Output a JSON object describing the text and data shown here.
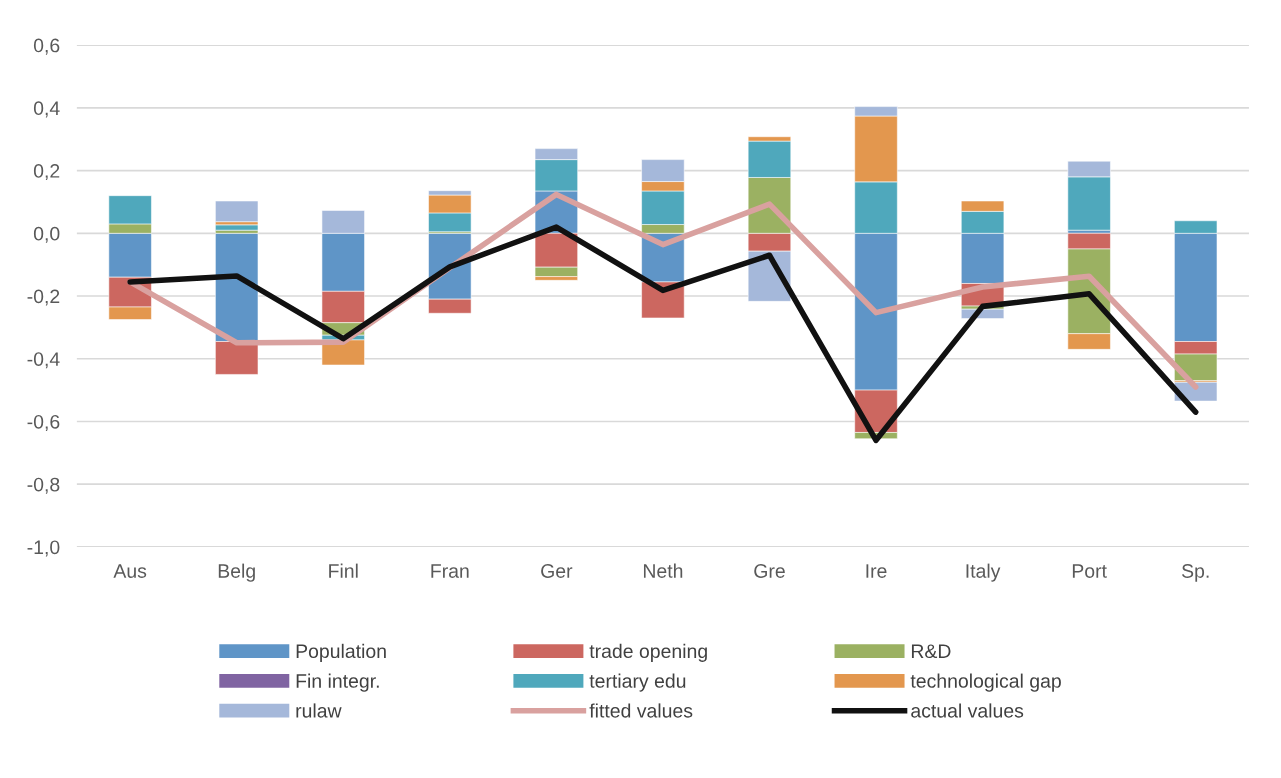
{
  "chart_data": {
    "type": "bar",
    "stacked": true,
    "categories": [
      "Aus",
      "Belg",
      "Finl",
      "Fran",
      "Ger",
      "Neth",
      "Gre",
      "Ire",
      "Italy",
      "Port",
      "Sp."
    ],
    "series": [
      {
        "name": "Population",
        "color": "#5f95c7",
        "values": [
          -0.14,
          -0.345,
          -0.185,
          -0.21,
          0.135,
          -0.155,
          null,
          -0.5,
          -0.16,
          0.01,
          -0.345
        ]
      },
      {
        "name": "trade opening",
        "color": "#cc6760",
        "values": [
          -0.095,
          -0.105,
          -0.1,
          -0.045,
          -0.108,
          -0.115,
          -0.057,
          -0.135,
          -0.072,
          -0.05,
          -0.04
        ]
      },
      {
        "name": "R&D",
        "color": "#9bb162",
        "values": [
          0.03,
          0.01,
          -0.04,
          0.005,
          -0.03,
          0.028,
          0.178,
          -0.02,
          -0.01,
          -0.27,
          -0.085
        ]
      },
      {
        "name": "Fin integr.",
        "color": "#8064a2",
        "values": [
          null,
          null,
          null,
          null,
          null,
          null,
          null,
          null,
          null,
          null,
          null
        ]
      },
      {
        "name": "tertiary edu",
        "color": "#4fa8bc",
        "values": [
          0.09,
          0.017,
          -0.015,
          0.06,
          0.1,
          0.107,
          0.116,
          0.164,
          0.07,
          0.17,
          0.04
        ]
      },
      {
        "name": "technological gap",
        "color": "#e3974e",
        "values": [
          -0.04,
          0.01,
          -0.08,
          0.057,
          -0.012,
          0.03,
          0.014,
          0.21,
          0.033,
          -0.05,
          -0.005
        ]
      },
      {
        "name": "rulaw",
        "color": "#a5b8da",
        "values": [
          null,
          0.066,
          0.073,
          0.014,
          0.035,
          0.07,
          -0.16,
          0.03,
          -0.03,
          0.05,
          -0.06
        ]
      },
      {
        "name": "fitted values",
        "type": "line",
        "color": "#d9a19f",
        "values": [
          -0.155,
          -0.349,
          -0.347,
          -0.11,
          0.124,
          -0.036,
          0.093,
          -0.253,
          -0.171,
          -0.137,
          -0.49
        ]
      },
      {
        "name": "actual values",
        "type": "line",
        "color": "#111111",
        "values": [
          -0.155,
          -0.136,
          -0.336,
          -0.107,
          0.02,
          -0.182,
          -0.07,
          -0.66,
          -0.233,
          -0.193,
          -0.57
        ]
      }
    ],
    "ylim": [
      -1.0,
      0.6
    ],
    "yticks": [
      {
        "value": -1.0,
        "label": "-1,0"
      },
      {
        "value": -0.8,
        "label": "-0,8"
      },
      {
        "value": -0.6,
        "label": "-0,6"
      },
      {
        "value": -0.4,
        "label": "-0,4"
      },
      {
        "value": -0.2,
        "label": "-0,2"
      },
      {
        "value": 0.0,
        "label": "0,0"
      },
      {
        "value": 0.2,
        "label": "0,2"
      },
      {
        "value": 0.4,
        "label": "0,4"
      },
      {
        "value": 0.6,
        "label": "0,6"
      }
    ],
    "grid": "y",
    "legend": "bottom"
  }
}
